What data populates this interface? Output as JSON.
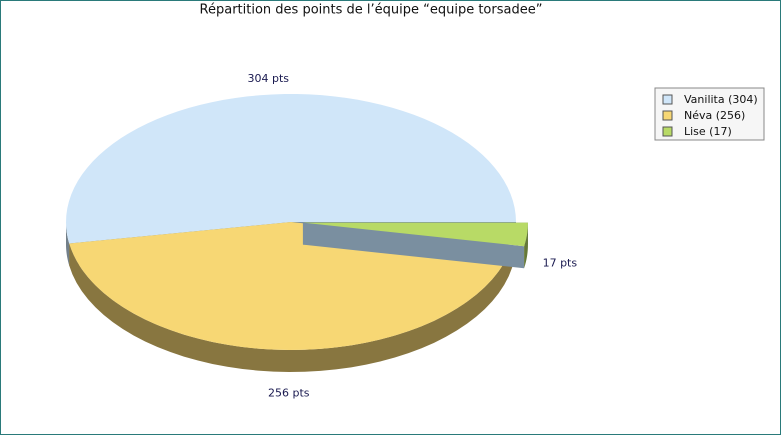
{
  "chart_data": {
    "type": "pie",
    "title": "Répartition des points de l’équipe “equipe  torsadee”",
    "categories": [
      "Vanilita (304)",
      "Néva (256)",
      "Lise (17)"
    ],
    "values": [
      304,
      256,
      17
    ],
    "value_labels": [
      "304 pts",
      "256 pts",
      "17 pts"
    ],
    "colors": [
      "#d0e6f9",
      "#f7d774",
      "#b8da66"
    ],
    "exploded": [
      false,
      false,
      true
    ],
    "legend": "top-right"
  }
}
